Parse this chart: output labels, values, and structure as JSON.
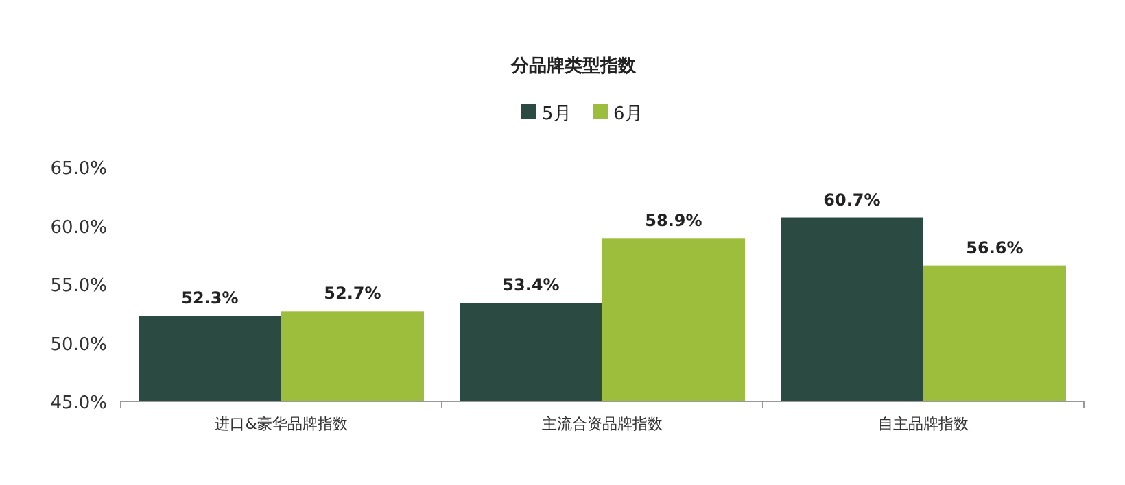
{
  "chart_data": {
    "type": "bar",
    "title": "分品牌类型指数",
    "categories": [
      "进口&豪华品牌指数",
      "主流合资品牌指数",
      "自主品牌指数"
    ],
    "series": [
      {
        "name": "5月",
        "color": "#2b4a42",
        "values": [
          52.3,
          53.4,
          60.7
        ],
        "value_labels": [
          "52.3%",
          "53.4%",
          "60.7%"
        ]
      },
      {
        "name": "6月",
        "color": "#9dbd3c",
        "values": [
          52.7,
          58.9,
          56.6
        ],
        "value_labels": [
          "52.7%",
          "58.9%",
          "56.6%"
        ]
      }
    ],
    "ylim": [
      45,
      65
    ],
    "yticks": [
      {
        "value": 45,
        "label": "45.0%"
      },
      {
        "value": 50,
        "label": "50.0%"
      },
      {
        "value": 55,
        "label": "55.0%"
      },
      {
        "value": 60,
        "label": "60.0%"
      },
      {
        "value": 65,
        "label": "65.0%"
      }
    ],
    "legend": "top"
  }
}
